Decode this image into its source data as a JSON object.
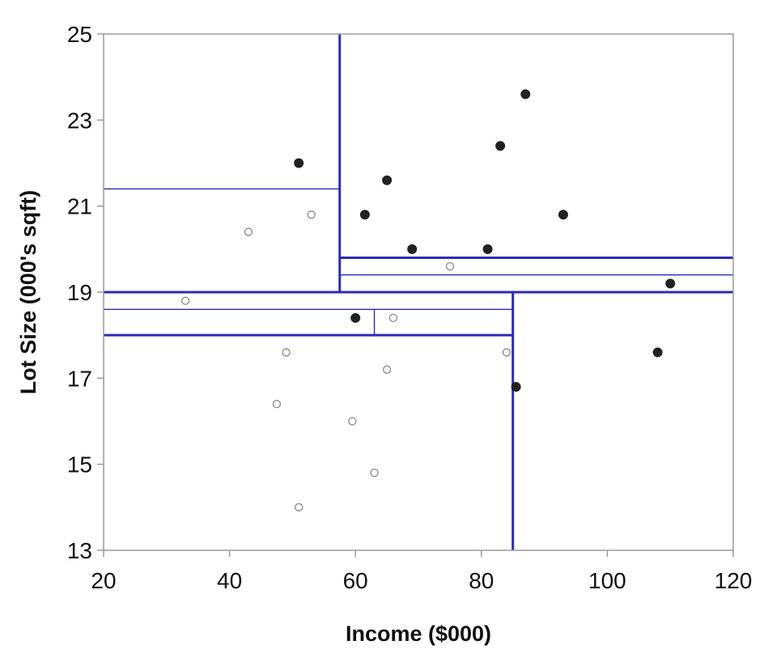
{
  "chart_data": {
    "type": "scatter",
    "title": "",
    "xlabel": "Income ($000)",
    "ylabel": "Lot Size (000's sqft)",
    "xlim": [
      20,
      120
    ],
    "ylim": [
      13,
      25
    ],
    "xticks": [
      20,
      40,
      60,
      80,
      100,
      120
    ],
    "yticks": [
      13,
      15,
      17,
      19,
      21,
      23,
      25
    ],
    "grid": false,
    "legend": "none",
    "series": [
      {
        "marker": "filled-circle",
        "color": "#222222",
        "points": [
          {
            "x": 51,
            "y": 22.0
          },
          {
            "x": 61.5,
            "y": 20.8
          },
          {
            "x": 65,
            "y": 21.6
          },
          {
            "x": 69,
            "y": 20.0
          },
          {
            "x": 81,
            "y": 20.0
          },
          {
            "x": 83,
            "y": 22.4
          },
          {
            "x": 87,
            "y": 23.6
          },
          {
            "x": 93,
            "y": 20.8
          },
          {
            "x": 110,
            "y": 19.2
          },
          {
            "x": 108,
            "y": 17.6
          },
          {
            "x": 85.5,
            "y": 16.8
          },
          {
            "x": 60,
            "y": 18.4
          }
        ]
      },
      {
        "marker": "open-circle",
        "color": "#888888",
        "points": [
          {
            "x": 33,
            "y": 18.8
          },
          {
            "x": 43,
            "y": 20.4
          },
          {
            "x": 53,
            "y": 20.8
          },
          {
            "x": 75,
            "y": 19.6
          },
          {
            "x": 66,
            "y": 18.4
          },
          {
            "x": 49,
            "y": 17.6
          },
          {
            "x": 84,
            "y": 17.6
          },
          {
            "x": 65,
            "y": 17.2
          },
          {
            "x": 47.5,
            "y": 16.4
          },
          {
            "x": 59.5,
            "y": 16.0
          },
          {
            "x": 63,
            "y": 14.8
          },
          {
            "x": 51,
            "y": 14.0
          }
        ]
      }
    ],
    "split_lines": [
      {
        "orientation": "horizontal",
        "value": 19.0,
        "from": 20,
        "to": 120,
        "weight": "thick"
      },
      {
        "orientation": "vertical",
        "value": 57.5,
        "from": 19.0,
        "to": 25,
        "weight": "thick"
      },
      {
        "orientation": "vertical",
        "value": 85,
        "from": 13,
        "to": 19.0,
        "weight": "thick"
      },
      {
        "orientation": "horizontal",
        "value": 18.0,
        "from": 20,
        "to": 85,
        "weight": "thick"
      },
      {
        "orientation": "horizontal",
        "value": 19.8,
        "from": 57.5,
        "to": 120,
        "weight": "thick"
      },
      {
        "orientation": "horizontal",
        "value": 21.4,
        "from": 20,
        "to": 57.5,
        "weight": "thin"
      },
      {
        "orientation": "horizontal",
        "value": 18.6,
        "from": 20,
        "to": 85,
        "weight": "thin"
      },
      {
        "orientation": "vertical",
        "value": 63,
        "from": 18.0,
        "to": 18.6,
        "weight": "thin"
      },
      {
        "orientation": "horizontal",
        "value": 19.4,
        "from": 57.5,
        "to": 120,
        "weight": "thin"
      }
    ],
    "split_color": "#2b2bb5"
  }
}
